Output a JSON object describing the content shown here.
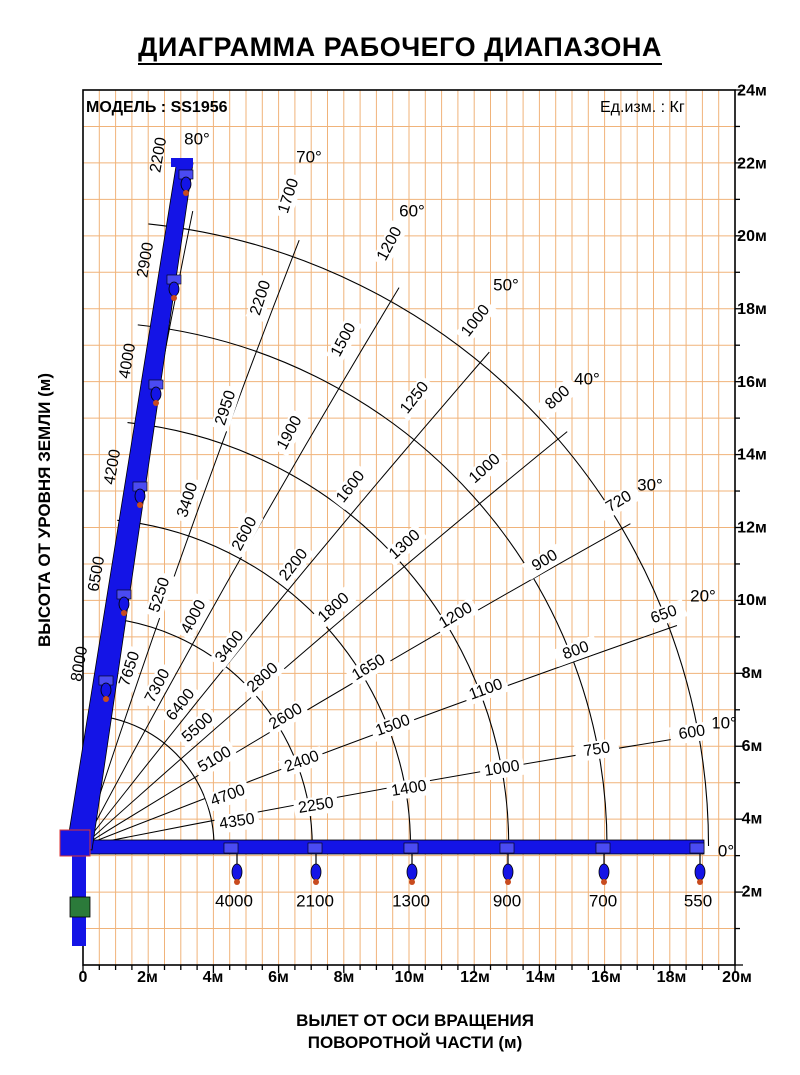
{
  "title": "ДИАГРАММА РАБОЧЕГО ДИАПАЗОНА",
  "model": "МОДЕЛЬ : SS1956",
  "units": "Ед.изм. : Кг",
  "xlabel_line1": "ВЫЛЕТ ОТ ОСИ ВРАЩЕНИЯ",
  "xlabel_line2": "ПОВОРОТНОЙ ЧАСТИ (м)",
  "ylabel": "ВЫСОТА ОТ УРОВНЯ ЗЕМЛИ (м)",
  "colors": {
    "grid": "#f0b37a",
    "boom": "#1414e6",
    "axis": "#000000"
  },
  "x_ticks": [
    "0",
    "2м",
    "4м",
    "6м",
    "8м",
    "10м",
    "12м",
    "14м",
    "16м",
    "18м",
    "20м"
  ],
  "y_ticks": [
    "2м",
    "4м",
    "6м",
    "8м",
    "10м",
    "12м",
    "14м",
    "16м",
    "18м",
    "20м",
    "22м",
    "24м"
  ],
  "angles": [
    "0°",
    "10°",
    "20°",
    "30°",
    "40°",
    "50°",
    "60°",
    "70°",
    "80°"
  ],
  "boom_loads": [
    "8000",
    "6500",
    "4200",
    "4000",
    "2900",
    "2200"
  ],
  "loads_0deg": [
    "4000",
    "2100",
    "1300",
    "900",
    "700",
    "550"
  ],
  "loads_10deg": [
    "4350",
    "2250",
    "1400",
    "1000",
    "750",
    "600"
  ],
  "loads_20deg": [
    "4700",
    "2400",
    "1500",
    "1100",
    "800",
    "650"
  ],
  "loads_30deg": [
    "5100",
    "2600",
    "1650",
    "1200",
    "900",
    "720"
  ],
  "loads_40deg": [
    "5500",
    "2800",
    "1800",
    "1300",
    "1000",
    "800"
  ],
  "loads_50deg": [
    "6400",
    "3400",
    "2200",
    "1600",
    "1250",
    "1000"
  ],
  "loads_60deg": [
    "7300",
    "4000",
    "2600",
    "1900",
    "1500",
    "1200"
  ],
  "loads_70deg": [
    "7650",
    "5250",
    "3400",
    "2950",
    "2200",
    "1700"
  ]
}
